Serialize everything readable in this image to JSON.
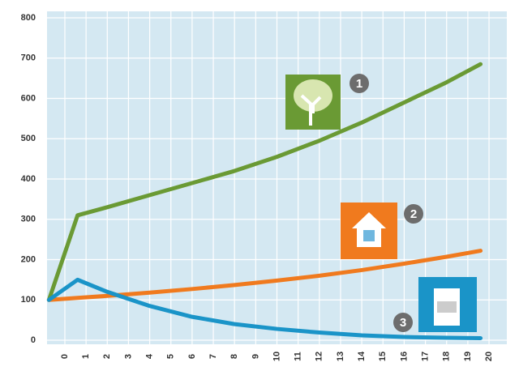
{
  "chart_data": {
    "type": "line",
    "x": [
      -0.75,
      0.6,
      2,
      4,
      6,
      8,
      10,
      12,
      14,
      16,
      18,
      19.6
    ],
    "series": [
      {
        "label": "1",
        "color": "#6a9a34",
        "values": [
          100,
          310,
          330,
          360,
          390,
          420,
          455,
          495,
          540,
          590,
          640,
          685
        ]
      },
      {
        "label": "2",
        "color": "#f07a1e",
        "values": [
          100,
          105,
          110,
          118,
          127,
          137,
          148,
          160,
          174,
          190,
          207,
          222
        ]
      },
      {
        "label": "3",
        "color": "#1a94c8",
        "values": [
          100,
          150,
          120,
          85,
          58,
          40,
          28,
          19,
          12,
          8,
          6,
          5
        ]
      }
    ],
    "xlim": [
      -0.84,
      20.84
    ],
    "ylim": [
      0,
      800
    ],
    "xticks": [
      0,
      1,
      2,
      3,
      4,
      5,
      6,
      7,
      8,
      9,
      10,
      11,
      12,
      13,
      14,
      15,
      16,
      17,
      18,
      19,
      20
    ],
    "yticks": [
      0,
      100,
      200,
      300,
      400,
      500,
      600,
      700,
      800
    ],
    "grid": true,
    "background": "#d4e8f2"
  }
}
